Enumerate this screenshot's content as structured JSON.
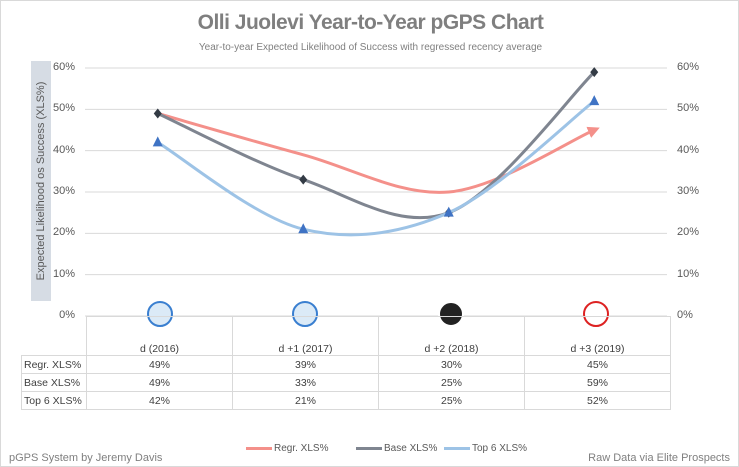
{
  "chart_data": {
    "type": "line",
    "title": "Olli Juolevi Year-to-Year pGPS Chart",
    "subtitle": "Year-to-year Expected Likelihood of Success with regressed recency average",
    "ylabel": "Expected Likelihood os Success (XLS%)",
    "ylim": [
      0,
      60
    ],
    "yticks": [
      "0%",
      "10%",
      "20%",
      "30%",
      "40%",
      "50%",
      "60%"
    ],
    "categories": [
      "d (2016)",
      "d +1 (2017)",
      "d +2 (2018)",
      "d +3 (2019)"
    ],
    "series": [
      {
        "name": "Regr. XLS%",
        "values": [
          49,
          39,
          30,
          45
        ],
        "labels": [
          "49%",
          "39%",
          "30%",
          "45%"
        ],
        "color": "#f4908a",
        "marker": "arrow"
      },
      {
        "name": "Base XLS%",
        "values": [
          49,
          33,
          25,
          59
        ],
        "labels": [
          "49%",
          "33%",
          "25%",
          "59%"
        ],
        "color": "#7f8590",
        "marker": "diamond"
      },
      {
        "name": "Top 6 XLS%",
        "values": [
          42,
          21,
          25,
          52
        ],
        "labels": [
          "42%",
          "21%",
          "25%",
          "52%"
        ],
        "color": "#9dc3e6",
        "marker": "triangle"
      }
    ],
    "legend": "bottom",
    "grid": true
  },
  "footer": {
    "left": "pGPS System by Jeremy Davis",
    "right": "Raw Data via Elite Prospects"
  }
}
